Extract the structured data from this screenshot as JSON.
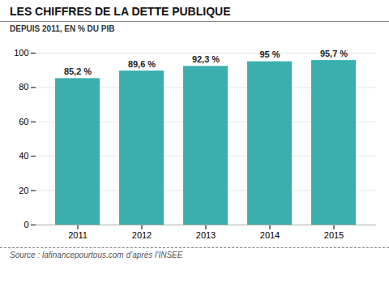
{
  "chart_data": {
    "type": "bar",
    "title": "LES CHIFFRES DE LA DETTE PUBLIQUE",
    "subtitle": "DEPUIS 2011, EN % DU PIB",
    "categories": [
      "2011",
      "2012",
      "2013",
      "2014",
      "2015"
    ],
    "values": [
      85.2,
      89.6,
      92.3,
      95.0,
      95.7
    ],
    "value_labels": [
      "85,2 %",
      "89,6 %",
      "92,3 %",
      "95 %",
      "95,7 %"
    ],
    "data_labels": true,
    "color": "#3aafad",
    "ylim": [
      0,
      100
    ],
    "yticks": [
      0,
      20,
      40,
      60,
      80,
      100
    ],
    "grid": true,
    "annotations": [
      "Source : lafinancepourtous.com d’après l’INSEE"
    ]
  }
}
